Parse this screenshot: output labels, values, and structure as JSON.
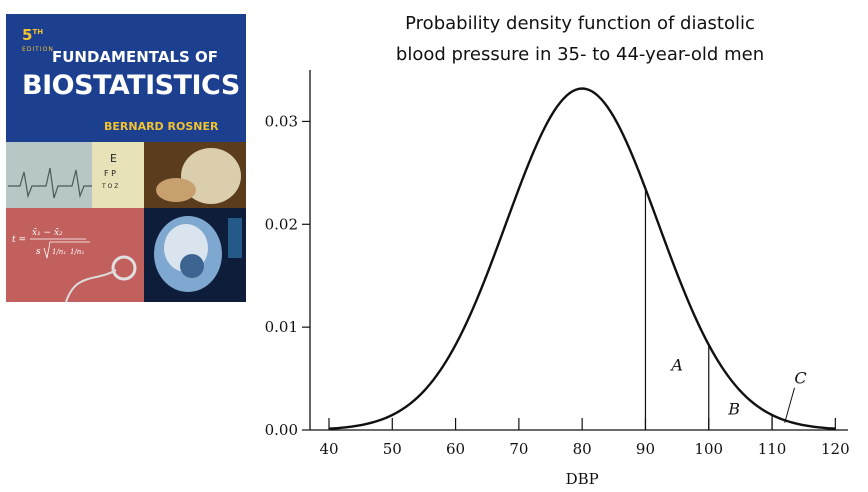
{
  "cover": {
    "edition_number": "5",
    "edition_suffix": "TH",
    "edition_label": "EDITION",
    "title_line1": "FUNDAMENTALS OF",
    "title_line2": "BIOSTATISTICS",
    "author": "BERNARD ROSNER",
    "formula_lhs": "t =",
    "formula_numerator": "x̄₁ − x̄₂",
    "formula_s": "s",
    "formula_frac1": "1/n₁",
    "formula_frac2": "1/n₂",
    "colors": {
      "background": "#1d3f8f",
      "accent": "#f2c230"
    }
  },
  "chart_data": {
    "type": "line",
    "title": "Probability density function of diastolic blood pressure in 35- to 44-year-old men",
    "title_lines": [
      "Probability density function of diastolic",
      "blood pressure in 35- to 44-year-old men"
    ],
    "xlabel": "DBP",
    "ylabel": "",
    "xlim": [
      37,
      122
    ],
    "ylim": [
      0,
      0.035
    ],
    "x_ticks": [
      40,
      50,
      60,
      70,
      80,
      90,
      100,
      110,
      120
    ],
    "y_ticks": [
      0.0,
      0.01,
      0.02,
      0.03
    ],
    "y_tick_labels": [
      "0.00",
      "0.01",
      "0.02",
      "0.03"
    ],
    "series": [
      {
        "distribution": "normal",
        "mean": 80,
        "sd": 12,
        "x_range": [
          40,
          120
        ],
        "peak_density": 0.0332
      }
    ],
    "vertical_lines": [
      90,
      100,
      110
    ],
    "annotations": [
      {
        "label": "A",
        "x": 95,
        "y": 0.0058
      },
      {
        "label": "B",
        "x": 104,
        "y": 0.0015
      },
      {
        "label": "C",
        "x": 114.5,
        "y": 0.0045,
        "pointer_to": [
          112,
          0.0007
        ]
      }
    ],
    "grid": false,
    "legend": "none"
  }
}
